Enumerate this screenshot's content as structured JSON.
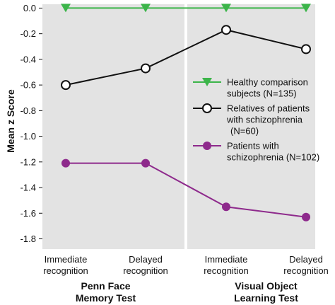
{
  "chart_data": {
    "type": "line",
    "ylabel": "Mean z Score",
    "ylim": [
      -1.88,
      0.03
    ],
    "yticks": [
      "0.0",
      "-0.2",
      "-0.4",
      "-0.6",
      "-0.8",
      "-1.0",
      "-1.2",
      "-1.4",
      "-1.6",
      "-1.8"
    ],
    "ytick_values": [
      0.0,
      -0.2,
      -0.4,
      -0.6,
      -0.8,
      -1.0,
      -1.2,
      -1.4,
      -1.6,
      -1.8
    ],
    "categories": [
      [
        "Immediate",
        "recognition"
      ],
      [
        "Delayed",
        "recognition"
      ],
      [
        "Immediate",
        "recognition"
      ],
      [
        "Delayed",
        "recognition"
      ]
    ],
    "groups": [
      {
        "lines": [
          "Penn Face",
          "Memory Test"
        ]
      },
      {
        "lines": [
          "Visual Object",
          "Learning Test"
        ]
      }
    ],
    "grid": false,
    "legend_position": "right",
    "series": [
      {
        "name": [
          "Healthy comparison",
          "subjects (N=135)"
        ],
        "values": [
          0.0,
          0.0,
          0.0,
          0.0
        ],
        "color": "#3cb54a",
        "marker": "triangle-down"
      },
      {
        "name": [
          "Relatives of patients",
          "with schizophrenia",
          "(N=60)"
        ],
        "values": [
          -0.6,
          -0.47,
          -0.17,
          -0.32
        ],
        "color": "#111111",
        "marker": "circle-open"
      },
      {
        "name": [
          "Patients with",
          "schizophrenia (N=102)"
        ],
        "values": [
          -1.21,
          -1.21,
          -1.55,
          -1.63
        ],
        "color": "#8e2a8c",
        "marker": "circle-filled"
      }
    ]
  }
}
